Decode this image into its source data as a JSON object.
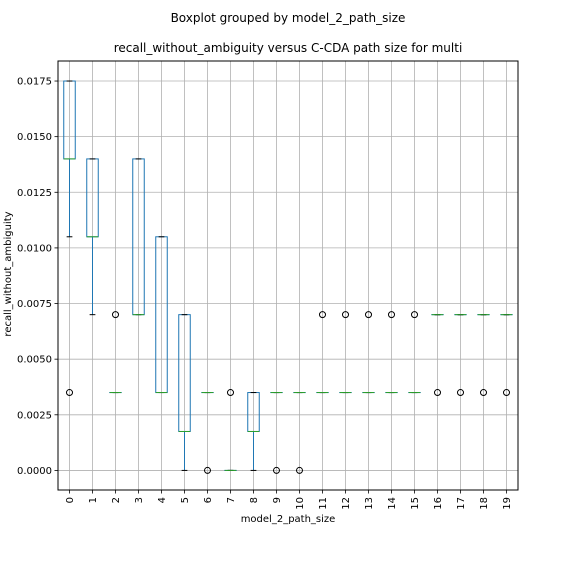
{
  "figure": {
    "suptitle": "Boxplot grouped by model_2_path_size",
    "title": "recall_without_ambiguity versus C-CDA path size for multi"
  },
  "chart_data": {
    "type": "box",
    "xlabel": "model_2_path_size",
    "ylabel": "recall_without_ambiguity",
    "ylim": [
      -0.00088,
      0.0184
    ],
    "y_ticks": [
      "0.0000",
      "0.0025",
      "0.0050",
      "0.0075",
      "0.0100",
      "0.0125",
      "0.0150",
      "0.0175"
    ],
    "categories": [
      "0",
      "1",
      "2",
      "3",
      "4",
      "5",
      "6",
      "7",
      "8",
      "9",
      "10",
      "11",
      "12",
      "13",
      "14",
      "15",
      "16",
      "17",
      "18",
      "19"
    ],
    "grid": true,
    "boxes": [
      {
        "cat": "0",
        "q1": 0.014,
        "q3": 0.0175,
        "median": 0.014,
        "whislo": 0.0105,
        "whishi": 0.0175,
        "fliers": [
          0.0035
        ]
      },
      {
        "cat": "1",
        "q1": 0.0105,
        "q3": 0.014,
        "median": 0.0105,
        "whislo": 0.007,
        "whishi": 0.014,
        "fliers": []
      },
      {
        "cat": "2",
        "q1": 0.0035,
        "q3": 0.0035,
        "median": 0.0035,
        "whislo": 0.0035,
        "whishi": 0.0035,
        "fliers": [
          0.007
        ]
      },
      {
        "cat": "3",
        "q1": 0.007,
        "q3": 0.014,
        "median": 0.007,
        "whislo": 0.007,
        "whishi": 0.014,
        "fliers": []
      },
      {
        "cat": "4",
        "q1": 0.0035,
        "q3": 0.0105,
        "median": 0.0035,
        "whislo": 0.0035,
        "whishi": 0.0105,
        "fliers": []
      },
      {
        "cat": "5",
        "q1": 0.00175,
        "q3": 0.007,
        "median": 0.00175,
        "whislo": 0.0,
        "whishi": 0.007,
        "fliers": []
      },
      {
        "cat": "6",
        "q1": 0.0035,
        "q3": 0.0035,
        "median": 0.0035,
        "whislo": 0.0035,
        "whishi": 0.0035,
        "fliers": [
          0.0
        ]
      },
      {
        "cat": "7",
        "q1": 0.0,
        "q3": 0.0,
        "median": 0.0,
        "whislo": 0.0,
        "whishi": 0.0,
        "fliers": [
          0.0035
        ]
      },
      {
        "cat": "8",
        "q1": 0.00175,
        "q3": 0.0035,
        "median": 0.00175,
        "whislo": 0.0,
        "whishi": 0.0035,
        "fliers": []
      },
      {
        "cat": "9",
        "q1": 0.0035,
        "q3": 0.0035,
        "median": 0.0035,
        "whislo": 0.0035,
        "whishi": 0.0035,
        "fliers": [
          0.0
        ]
      },
      {
        "cat": "10",
        "q1": 0.0035,
        "q3": 0.0035,
        "median": 0.0035,
        "whislo": 0.0035,
        "whishi": 0.0035,
        "fliers": [
          0.0
        ]
      },
      {
        "cat": "11",
        "q1": 0.0035,
        "q3": 0.0035,
        "median": 0.0035,
        "whislo": 0.0035,
        "whishi": 0.0035,
        "fliers": [
          0.007
        ]
      },
      {
        "cat": "12",
        "q1": 0.0035,
        "q3": 0.0035,
        "median": 0.0035,
        "whislo": 0.0035,
        "whishi": 0.0035,
        "fliers": [
          0.007
        ]
      },
      {
        "cat": "13",
        "q1": 0.0035,
        "q3": 0.0035,
        "median": 0.0035,
        "whislo": 0.0035,
        "whishi": 0.0035,
        "fliers": [
          0.007
        ]
      },
      {
        "cat": "14",
        "q1": 0.0035,
        "q3": 0.0035,
        "median": 0.0035,
        "whislo": 0.0035,
        "whishi": 0.0035,
        "fliers": [
          0.007
        ]
      },
      {
        "cat": "15",
        "q1": 0.0035,
        "q3": 0.0035,
        "median": 0.0035,
        "whislo": 0.0035,
        "whishi": 0.0035,
        "fliers": [
          0.007
        ]
      },
      {
        "cat": "16",
        "q1": 0.007,
        "q3": 0.007,
        "median": 0.007,
        "whislo": 0.007,
        "whishi": 0.007,
        "fliers": [
          0.0035
        ]
      },
      {
        "cat": "17",
        "q1": 0.007,
        "q3": 0.007,
        "median": 0.007,
        "whislo": 0.007,
        "whishi": 0.007,
        "fliers": [
          0.0035
        ]
      },
      {
        "cat": "18",
        "q1": 0.007,
        "q3": 0.007,
        "median": 0.007,
        "whislo": 0.007,
        "whishi": 0.007,
        "fliers": [
          0.0035
        ]
      },
      {
        "cat": "19",
        "q1": 0.007,
        "q3": 0.007,
        "median": 0.007,
        "whislo": 0.007,
        "whishi": 0.007,
        "fliers": [
          0.0035
        ]
      }
    ],
    "colors": {
      "box": "#1f77b4",
      "whisker": "#1f77b4",
      "median": "#2ca02c",
      "grid": "#b0b0b0",
      "flier": "#000000"
    }
  }
}
